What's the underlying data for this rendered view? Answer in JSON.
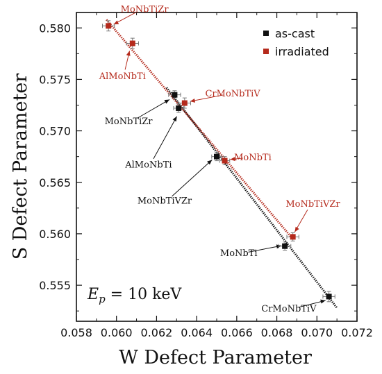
{
  "chart_data": {
    "type": "scatter",
    "title": "",
    "xlabel": "W Defect Parameter",
    "ylabel": "S Defect Parameter",
    "xlim": [
      0.058,
      0.072
    ],
    "ylim": [
      0.5515,
      0.5815
    ],
    "xticks": [
      {
        "value": 0.058,
        "label": "0.058"
      },
      {
        "value": 0.06,
        "label": "0.060"
      },
      {
        "value": 0.062,
        "label": "0.062"
      },
      {
        "value": 0.064,
        "label": "0.064"
      },
      {
        "value": 0.066,
        "label": "0.066"
      },
      {
        "value": 0.068,
        "label": "0.068"
      },
      {
        "value": 0.07,
        "label": "0.070"
      },
      {
        "value": 0.072,
        "label": "0.072"
      }
    ],
    "yticks": [
      {
        "value": 0.555,
        "label": "0.555"
      },
      {
        "value": 0.56,
        "label": "0.560"
      },
      {
        "value": 0.565,
        "label": "0.565"
      },
      {
        "value": 0.57,
        "label": "0.570"
      },
      {
        "value": 0.575,
        "label": "0.575"
      },
      {
        "value": 0.58,
        "label": "0.580"
      }
    ],
    "grid": false,
    "legend_position": "top-right",
    "series": [
      {
        "name": "as-cast",
        "color": "#111111",
        "marker": "square",
        "fit_line": {
          "x": [
            0.0625,
            0.071
          ],
          "y": [
            0.5742,
            0.5528
          ]
        },
        "points": [
          {
            "label": "MoNbTiZr",
            "x": 0.0629,
            "y": 0.5735,
            "xerr": 0.0003,
            "yerr": 0.0004
          },
          {
            "label": "AlMoNbTi",
            "x": 0.0631,
            "y": 0.5722,
            "xerr": 0.00025,
            "yerr": 0.0004
          },
          {
            "label": "MoNbTiVZr",
            "x": 0.065,
            "y": 0.5675,
            "xerr": 0.00025,
            "yerr": 0.0004
          },
          {
            "label": "MoNbTi",
            "x": 0.0684,
            "y": 0.5588,
            "xerr": 0.0003,
            "yerr": 0.0004
          },
          {
            "label": "CrMoNbTiV",
            "x": 0.0706,
            "y": 0.5539,
            "xerr": 0.0003,
            "yerr": 0.0005
          }
        ]
      },
      {
        "name": "irradiated",
        "color": "#b52a1c",
        "marker": "square",
        "fit_line": {
          "x": [
            0.0595,
            0.0688
          ],
          "y": [
            0.5808,
            0.5595
          ]
        },
        "points": [
          {
            "label": "MoNbTiZr",
            "x": 0.0596,
            "y": 0.5802,
            "xerr": 0.0003,
            "yerr": 0.0005
          },
          {
            "label": "AlMoNbTi",
            "x": 0.0608,
            "y": 0.5785,
            "xerr": 0.0003,
            "yerr": 0.0005
          },
          {
            "label": "CrMoNbTiV",
            "x": 0.0634,
            "y": 0.5727,
            "xerr": 0.0003,
            "yerr": 0.0005
          },
          {
            "label": "MoNbTi",
            "x": 0.0654,
            "y": 0.5671,
            "xerr": 0.00025,
            "yerr": 0.0004
          },
          {
            "label": "MoNbTiVZr",
            "x": 0.0688,
            "y": 0.5597,
            "xerr": 0.0003,
            "yerr": 0.0004
          }
        ]
      }
    ],
    "annotations": [
      {
        "text": "MoNbTiZr",
        "series": "irradiated",
        "x": 0.0614,
        "y": 0.5818,
        "ax": 0.0597,
        "ay": 0.5802
      },
      {
        "text": "AlMoNbTi",
        "series": "irradiated",
        "x": 0.0603,
        "y": 0.5753,
        "ax": 0.0607,
        "ay": 0.5781
      },
      {
        "text": "CrMoNbTiV",
        "series": "irradiated",
        "x": 0.0658,
        "y": 0.5736,
        "ax": 0.0635,
        "ay": 0.5728
      },
      {
        "text": "MoNbTi",
        "series": "irradiated",
        "x": 0.0668,
        "y": 0.5674,
        "ax": 0.0655,
        "ay": 0.5672
      },
      {
        "text": "MoNbTiVZr",
        "series": "irradiated",
        "x": 0.0698,
        "y": 0.5629,
        "ax": 0.0688,
        "ay": 0.5599
      },
      {
        "text": "MoNbTiZr",
        "series": "as-cast",
        "x": 0.0606,
        "y": 0.5709,
        "ax": 0.0628,
        "ay": 0.5732
      },
      {
        "text": "AlMoNbTi",
        "series": "as-cast",
        "x": 0.0616,
        "y": 0.5667,
        "ax": 0.0631,
        "ay": 0.5717
      },
      {
        "text": "MoNbTiVZr",
        "series": "as-cast",
        "x": 0.0624,
        "y": 0.5632,
        "ax": 0.0649,
        "ay": 0.5674
      },
      {
        "text": "MoNbTi",
        "series": "as-cast",
        "x": 0.0661,
        "y": 0.5581,
        "ax": 0.0684,
        "ay": 0.5589
      },
      {
        "text": "CrMoNbTiV",
        "series": "as-cast",
        "x": 0.0686,
        "y": 0.5527,
        "ax": 0.0706,
        "ay": 0.5536
      }
    ],
    "energy_label": {
      "symbol": "E",
      "subscript": "p",
      "text": " = 10 keV"
    }
  }
}
